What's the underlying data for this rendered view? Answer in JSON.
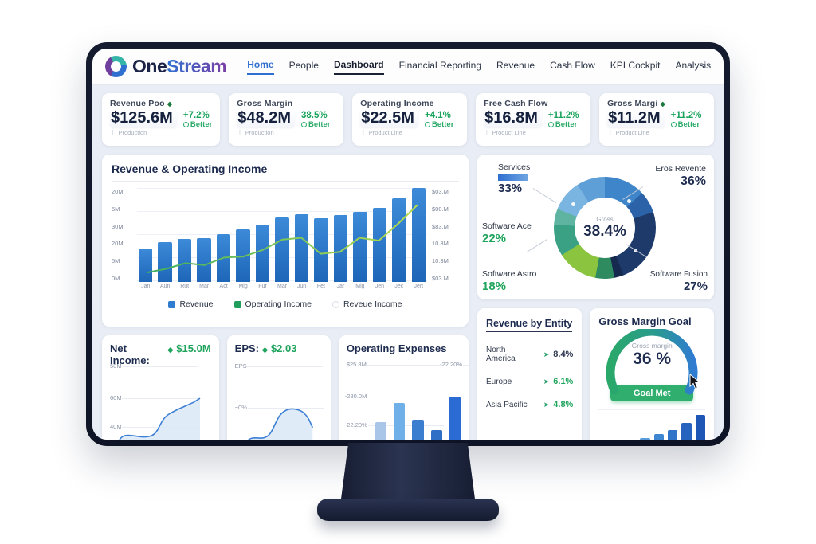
{
  "brand": {
    "part1": "One",
    "part2": "Stream"
  },
  "nav": {
    "items": [
      "Home",
      "People",
      "Dashboard",
      "Financial Reporting",
      "Revenue",
      "Cash Flow",
      "KPI Cockpit",
      "Analysis"
    ]
  },
  "kpis": [
    {
      "title": "Revenue Poo",
      "suffix": "◆",
      "value": "$125.6M",
      "delta": "+7.2%",
      "status": "Better",
      "sub": "Production"
    },
    {
      "title": "Gross Margin",
      "suffix": "",
      "value": "$48.2M",
      "delta": "38.5%",
      "status": "Better",
      "sub": "Production"
    },
    {
      "title": "Operating Income",
      "suffix": "",
      "value": "$22.5M",
      "delta": "+4.1%",
      "status": "Better",
      "sub": "Product Line"
    },
    {
      "title": "Free Cash Flow",
      "suffix": "",
      "value": "$16.8M",
      "delta": "+11.2%",
      "status": "Better",
      "sub": "Product Line"
    },
    {
      "title": "Gross Margi",
      "suffix": "◆",
      "value": "$11.2M",
      "delta": "+11.2%",
      "status": "Better",
      "sub": "Product Line"
    }
  ],
  "revenue_chart": {
    "title": "Revenue & Operating Income",
    "legend": [
      "Revenue",
      "Operating Income",
      "Reveue Income"
    ]
  },
  "donut": {
    "center_label": "Gross",
    "center_value": "38.4%",
    "services": {
      "name": "Services",
      "value": "33%"
    },
    "eros": {
      "name": "Eros Revente",
      "value": "36%"
    },
    "ace": {
      "name": "Software Ace",
      "value": "22%"
    },
    "astro": {
      "name": "Software Astro",
      "value": "18%"
    },
    "fusion": {
      "name": "Software Fusion",
      "value": "27%"
    }
  },
  "entity": {
    "title": "Revenue by Entity",
    "rows": [
      {
        "label": "North America",
        "value": "8.4%",
        "color": "#2c3550"
      },
      {
        "label": "Europe",
        "value": "6.1%",
        "color": "#1fa45c"
      },
      {
        "label": "Asia Pacific",
        "value": "4.8%",
        "color": "#1fa45c"
      }
    ]
  },
  "gauge": {
    "title": "Gross Margin Goal",
    "label": "Gross margin",
    "value": "36 %",
    "button": "Goal Met"
  },
  "net_income": {
    "title": "Net Income:",
    "diamond": "◆",
    "value": "$15.0M",
    "y_ticks": [
      "50M",
      "60M",
      "40M"
    ]
  },
  "eps": {
    "title": "EPS:",
    "diamond": "◆",
    "value": "$2.03",
    "labels": [
      "EPS",
      "~0%"
    ]
  },
  "opex": {
    "title": "Operating Expenses",
    "top_left": "$25.8M",
    "top_right": "-22.20%",
    "left_mid": "-280.0M",
    "left_low": "-22.20%"
  },
  "colors": {
    "accent_blue": "#2f7cd0",
    "accent_green": "#1fa45c",
    "navy": "#1d2b4f"
  },
  "chart_data": [
    {
      "id": "revenue_operating_income",
      "type": "bar",
      "title": "Revenue & Operating Income",
      "categories": [
        "Jan",
        "Aun",
        "Rut",
        "Mar",
        "Act",
        "Mig",
        "Fur",
        "Mar",
        "Jun",
        "Fet",
        "Jar",
        "Mig",
        "Jen",
        "Jec",
        "Jert"
      ],
      "series": [
        {
          "name": "Revenue",
          "type": "bar",
          "values": [
            36,
            42,
            46,
            47,
            51,
            56,
            61,
            69,
            72,
            68,
            71,
            75,
            79,
            89,
            100
          ]
        },
        {
          "name": "Operating Income",
          "type": "line",
          "values": [
            10,
            14,
            20,
            18,
            26,
            27,
            34,
            45,
            47,
            30,
            32,
            47,
            44,
            62,
            82
          ]
        }
      ],
      "y_left_ticks": [
        "20M",
        "5M",
        "30M",
        "20M",
        "5M",
        "0M"
      ],
      "y_right_ticks": [
        "$03.M",
        "$00.M",
        "$83.M",
        "10.3M",
        "10.3M",
        "$03.M"
      ],
      "legend_position": "bottom",
      "grid": true
    },
    {
      "id": "revenue_mix",
      "type": "pie",
      "segments": [
        {
          "label": "Eros Revente",
          "value": 36
        },
        {
          "label": "Services",
          "value": 33
        },
        {
          "label": "Software Fusion",
          "value": 27
        },
        {
          "label": "Software Ace",
          "value": 22
        },
        {
          "label": "Software Astro",
          "value": 18
        }
      ],
      "center_value": "38.4%",
      "arcs": [
        {
          "color": "#3f85c9",
          "from": 0,
          "to": 13
        },
        {
          "color": "#2b62a8",
          "from": 13,
          "to": 20
        },
        {
          "color": "#1e3a6b",
          "from": 20,
          "to": 44
        },
        {
          "color": "#16294f",
          "from": 44,
          "to": 47
        },
        {
          "color": "#2e8b5f",
          "from": 47,
          "to": 53
        },
        {
          "color": "#8bc43f",
          "from": 53,
          "to": 66
        },
        {
          "color": "#3aa184",
          "from": 66,
          "to": 76
        },
        {
          "color": "#5fb4a1",
          "from": 76,
          "to": 81
        },
        {
          "color": "#79b5e0",
          "from": 81,
          "to": 91
        },
        {
          "color": "#5d9fd6",
          "from": 91,
          "to": 100
        }
      ]
    },
    {
      "id": "operating_expenses",
      "type": "bar",
      "values": [
        52,
        75,
        55,
        42,
        82
      ],
      "colors": [
        "#a9c6e8",
        "#6fb0e8",
        "#3b7ecf",
        "#2f6fc6",
        "#2a6bd4"
      ]
    },
    {
      "id": "net_income_trend",
      "type": "area",
      "values": [
        2,
        20,
        22,
        21,
        22,
        30,
        42,
        46,
        50,
        58
      ]
    },
    {
      "id": "eps_trend",
      "type": "area",
      "values": [
        2,
        18,
        20,
        22,
        34,
        44,
        46,
        44,
        36
      ]
    },
    {
      "id": "gauge_mini_bars",
      "type": "bar",
      "values": [
        16,
        22,
        28,
        35,
        44,
        56,
        74,
        95
      ],
      "colors": [
        "#b8d4ee",
        "#9cc4ea",
        "#7db2e4",
        "#5a9bdb",
        "#3f86d2",
        "#2f74c8",
        "#2563be",
        "#1d56b4"
      ]
    }
  ]
}
